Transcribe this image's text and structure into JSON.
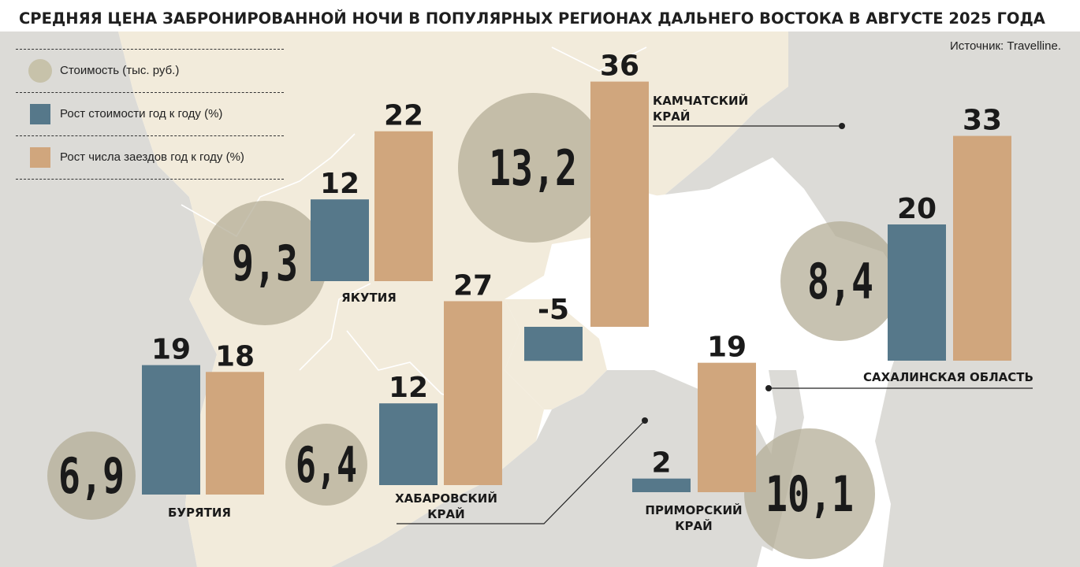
{
  "header": {
    "title": "СРЕДНЯЯ ЦЕНА ЗАБРОНИРОВАННОЙ НОЧИ В ПОПУЛЯРНЫХ РЕГИОНАХ ДАЛЬНЕГО ВОСТОКА В АВГУСТЕ 2025 ГОДА",
    "source": "Источник: Travelline."
  },
  "legend": {
    "cost": "Стоимость (тыс. руб.)",
    "price_growth": "Рост стоимости год к году (%)",
    "checkin_growth": "Рост числа заездов год к году (%)"
  },
  "colors": {
    "cost_circle": "#b4ae97",
    "price_growth": "#56788a",
    "checkin_growth": "#d0a67d",
    "land_light": "#f2ebdb",
    "land_grey": "#dcdbd7",
    "sea": "#ffffff"
  },
  "chart_data": {
    "type": "bar",
    "series": [
      {
        "name": "Стоимость (тыс. руб.)",
        "values": [
          6.9,
          6.4,
          9.3,
          13.2,
          10.1,
          8.4
        ]
      },
      {
        "name": "Рост стоимости год к году (%)",
        "values": [
          19,
          12,
          12,
          -5,
          2,
          20
        ]
      },
      {
        "name": "Рост числа заездов год к году (%)",
        "values": [
          18,
          27,
          22,
          36,
          19,
          33
        ]
      }
    ],
    "regions": [
      {
        "key": "buryatia",
        "label": [
          "БУРЯТИЯ"
        ],
        "cost": "6,9",
        "price_growth": 19,
        "checkin_growth": 18
      },
      {
        "key": "khabarovsk",
        "label": [
          "ХАБАРОВСКИЙ",
          "КРАЙ"
        ],
        "cost": "6,4",
        "price_growth": 12,
        "checkin_growth": 27
      },
      {
        "key": "yakutia",
        "label": [
          "ЯКУТИЯ"
        ],
        "cost": "9,3",
        "price_growth": 12,
        "checkin_growth": 22
      },
      {
        "key": "kamchatka",
        "label": [
          "КАМЧАТСКИЙ",
          "КРАЙ"
        ],
        "cost": "13,2",
        "price_growth": -5,
        "checkin_growth": 36
      },
      {
        "key": "primorsky",
        "label": [
          "ПРИМОРСКИЙ",
          "КРАЙ"
        ],
        "cost": "10,1",
        "price_growth": 2,
        "checkin_growth": 19
      },
      {
        "key": "sakhalin",
        "label": [
          "САХАЛИНСКАЯ ОБЛАСТЬ"
        ],
        "cost": "8,4",
        "price_growth": 20,
        "checkin_growth": 33
      }
    ]
  }
}
